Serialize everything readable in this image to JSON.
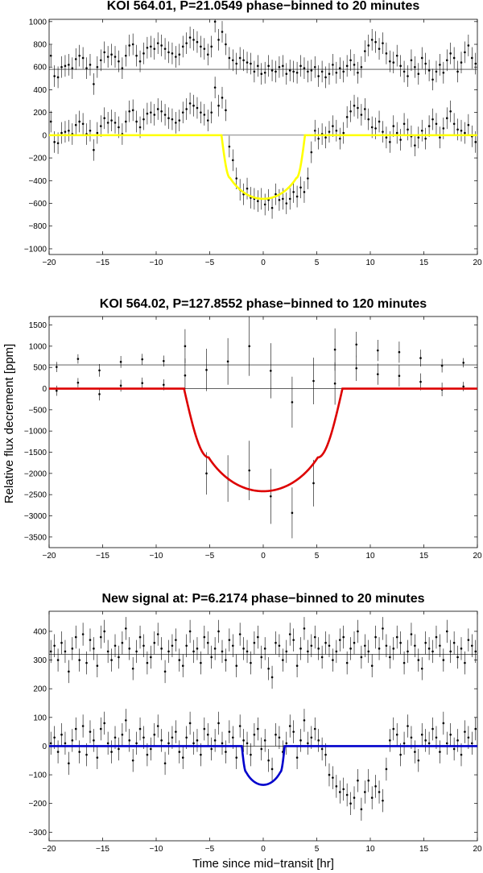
{
  "figure": {
    "ylabel": "Relative flux decrement [ppm]",
    "xlabel": "Time since mid−transit [hr]"
  },
  "colors": {
    "top": "#ffff00",
    "middle": "#dd0000",
    "bottom": "#0000cc",
    "points": "#000000"
  },
  "chart_data": [
    {
      "type": "scatter",
      "title": "KOI 564.01, P=21.0549 phase−binned to 20 minutes",
      "xlabel": "",
      "ylabel": "",
      "xlim": [
        -20,
        20
      ],
      "ylim": [
        -1050,
        1020
      ],
      "xticks": [
        -20,
        -15,
        -10,
        -5,
        0,
        5,
        10,
        15,
        20
      ],
      "yticks": [
        -1000,
        -800,
        -600,
        -400,
        -200,
        0,
        200,
        400,
        600,
        800,
        1000
      ],
      "reference_lines": [
        0,
        580
      ],
      "bin_hours": 0.3333,
      "grid": false,
      "fit_model": {
        "depth": 560,
        "half_duration": 3.9,
        "ingress": 0.8
      },
      "series": [
        {
          "role": "offset",
          "offset": 580,
          "error": 95,
          "values": [
            120,
            -60,
            -70,
            20,
            30,
            40,
            10,
            90,
            120,
            100,
            10,
            40,
            -130,
            20,
            80,
            150,
            110,
            130,
            110,
            70,
            10,
            120,
            210,
            220,
            120,
            70,
            140,
            190,
            200,
            180,
            230,
            210,
            180,
            150,
            140,
            110,
            130,
            200,
            230,
            280,
            260,
            240,
            200,
            180,
            130,
            200,
            420,
            260,
            330,
            220,
            100,
            80,
            50,
            100,
            80,
            60,
            50,
            -20,
            30,
            -40,
            -30,
            30,
            -10,
            -20,
            20,
            30,
            -40,
            -10,
            -20,
            -30,
            30,
            10,
            -20,
            -10,
            20,
            -60,
            -20,
            -70,
            -40,
            40,
            -30,
            10,
            -20,
            30,
            80,
            40,
            -30,
            20,
            160,
            210,
            260,
            240,
            180,
            230,
            140,
            70,
            60,
            120,
            30,
            -20,
            -60,
            80,
            20,
            -40,
            100,
            50,
            -10,
            -90,
            -20,
            40,
            -30,
            80,
            140,
            100,
            -20,
            60,
            150,
            210,
            100,
            50,
            40,
            20,
            90,
            -10,
            -60,
            20,
            40,
            80,
            -10,
            -60,
            20,
            40,
            -30,
            -50,
            -60,
            -10,
            80,
            -60,
            -70,
            80,
            20,
            -30,
            -20,
            40,
            70,
            -60,
            20,
            90,
            -70,
            10,
            30
          ]
        },
        {
          "role": "residual",
          "offset": 0,
          "error": 95,
          "values": [
            120,
            -60,
            -70,
            20,
            30,
            40,
            10,
            90,
            120,
            100,
            10,
            40,
            -130,
            20,
            80,
            150,
            110,
            130,
            110,
            70,
            10,
            120,
            210,
            220,
            120,
            70,
            140,
            190,
            200,
            180,
            230,
            210,
            180,
            150,
            140,
            110,
            130,
            200,
            230,
            280,
            260,
            240,
            200,
            180,
            130,
            200,
            420,
            260,
            330,
            220,
            -100,
            -220,
            -380,
            -480,
            -520,
            -470,
            -550,
            -560,
            -580,
            -560,
            -610,
            -570,
            -640,
            -520,
            -570,
            -560,
            -600,
            -560,
            -500,
            -540,
            -460,
            -500,
            -380,
            -150,
            40,
            -30,
            10,
            -20,
            30,
            80,
            40,
            -30,
            20,
            160,
            210,
            260,
            240,
            180,
            230,
            140,
            70,
            60,
            120,
            30,
            -20,
            -60,
            80,
            20,
            -40,
            100,
            50,
            -10,
            -90,
            -20,
            40,
            -30,
            80,
            140,
            100,
            -20,
            60,
            150,
            210,
            100,
            50,
            40,
            20,
            90,
            -10,
            -60,
            20,
            40,
            80,
            -10,
            -60,
            20,
            40,
            -30,
            -50,
            -60,
            -10,
            80,
            -60,
            -70,
            80,
            20,
            -30,
            -20,
            40,
            70,
            -60,
            20,
            90,
            -70,
            10,
            30
          ]
        }
      ]
    },
    {
      "type": "scatter",
      "title": "KOI 564.02, P=127.8552 phase−binned to 120 minutes",
      "xlabel": "",
      "ylabel": "",
      "xlim": [
        -20,
        20
      ],
      "ylim": [
        -3750,
        1700
      ],
      "xticks": [
        -20,
        -15,
        -10,
        -5,
        0,
        5,
        10,
        15,
        20
      ],
      "yticks": [
        -3500,
        -3000,
        -2500,
        -2000,
        -1500,
        -1000,
        -500,
        0,
        500,
        1000,
        1500
      ],
      "reference_lines": [
        0,
        560
      ],
      "grid": false,
      "fit_model": {
        "depth": 2420,
        "half_duration": 7.4,
        "ingress": 2.3
      },
      "series": [
        {
          "role": "offset",
          "offset": 560,
          "x": [
            -19.3,
            -17.3,
            -15.3,
            -13.3,
            -11.3,
            -9.3,
            -7.3,
            -5.3,
            -3.3,
            -1.3,
            0.7,
            2.7,
            4.7,
            6.7,
            8.7,
            10.7,
            12.7,
            14.7,
            16.7,
            18.7
          ],
          "y": [
            -50,
            140,
            -130,
            70,
            130,
            90,
            -250,
            -120,
            80,
            440,
            -140,
            -880,
            -380,
            360,
            480,
            340,
            300,
            160,
            -20,
            50
          ],
          "err": [
            120,
            110,
            150,
            140,
            130,
            130,
            400,
            500,
            550,
            700,
            650,
            600,
            550,
            500,
            300,
            250,
            250,
            200,
            160,
            110
          ]
        },
        {
          "role": "residual",
          "offset": 0,
          "x": [
            -19.3,
            -17.3,
            -15.3,
            -13.3,
            -11.3,
            -9.3,
            -7.3,
            -5.3,
            -3.3,
            -1.3,
            0.7,
            2.7,
            4.7,
            6.7,
            8.7,
            10.7,
            12.7,
            14.7,
            16.7,
            18.7
          ],
          "y": [
            -50,
            140,
            -130,
            70,
            130,
            90,
            1000,
            -2000,
            -2120,
            -1930,
            -2540,
            -2930,
            -2230,
            120,
            480,
            340,
            300,
            160,
            -20,
            50
          ],
          "err": [
            120,
            110,
            150,
            140,
            130,
            130,
            400,
            500,
            550,
            700,
            650,
            600,
            550,
            500,
            300,
            250,
            250,
            200,
            160,
            110
          ]
        }
      ]
    },
    {
      "type": "scatter",
      "title": "New signal at: P=6.2174 phase−binned to 20 minutes",
      "xlabel": "",
      "ylabel": "",
      "xlim": [
        -20,
        20
      ],
      "ylim": [
        -330,
        470
      ],
      "xticks": [
        -20,
        -15,
        -10,
        -5,
        0,
        5,
        10,
        15,
        20
      ],
      "yticks": [
        -300,
        -200,
        -100,
        0,
        100,
        200,
        300,
        400
      ],
      "reference_lines": [
        0,
        320
      ],
      "bin_hours": 0.3333,
      "grid": false,
      "fit_model": {
        "depth": 135,
        "half_duration": 2.0,
        "ingress": 0.4
      },
      "series": [
        {
          "role": "offset",
          "offset": 320,
          "error": 40,
          "values": [
            10,
            30,
            -20,
            40,
            10,
            -60,
            20,
            60,
            -20,
            70,
            -30,
            50,
            20,
            -40,
            60,
            80,
            10,
            -20,
            30,
            -10,
            40,
            90,
            20,
            -50,
            10,
            60,
            30,
            -30,
            -10,
            40,
            70,
            20,
            -60,
            10,
            30,
            50,
            -20,
            -40,
            30,
            80,
            10,
            20,
            -30,
            60,
            40,
            -10,
            20,
            80,
            10,
            -20,
            50,
            30,
            -40,
            70,
            20,
            10,
            -30,
            40,
            60,
            -10,
            20,
            -50,
            -80,
            40,
            30,
            -20,
            10,
            70,
            50,
            -40,
            20,
            90,
            10,
            30,
            60,
            20,
            -10,
            40,
            30,
            -20,
            10,
            50,
            60,
            -30,
            20,
            40,
            80,
            -10,
            30,
            10,
            -40,
            60,
            20,
            90,
            30,
            -10,
            20,
            60,
            40,
            -30,
            10,
            70,
            30,
            -20,
            -50,
            40,
            20,
            10,
            60,
            30,
            -20,
            80,
            10,
            40,
            -10,
            20,
            -30,
            50,
            30,
            10,
            60,
            -40,
            20,
            30,
            110,
            70,
            -20,
            40,
            10,
            80,
            20,
            -30,
            50,
            10,
            30,
            -10,
            70,
            20,
            40,
            -20,
            10,
            50,
            -40,
            20,
            30,
            -10,
            60,
            10,
            -30,
            40,
            20,
            50,
            -20,
            30,
            10,
            20,
            -40,
            60,
            30,
            -10,
            20,
            40,
            -20,
            30
          ]
        },
        {
          "role": "residual",
          "offset": 0,
          "error": 40,
          "values": [
            10,
            30,
            -20,
            40,
            10,
            -60,
            20,
            60,
            -20,
            70,
            -30,
            50,
            20,
            -40,
            60,
            80,
            10,
            -20,
            30,
            -10,
            40,
            90,
            20,
            -50,
            10,
            60,
            30,
            -30,
            -10,
            40,
            70,
            20,
            -60,
            10,
            30,
            50,
            -20,
            -40,
            30,
            80,
            10,
            20,
            -30,
            60,
            40,
            -10,
            20,
            80,
            10,
            -20,
            50,
            30,
            -40,
            70,
            20,
            10,
            -30,
            40,
            60,
            -10,
            20,
            -50,
            -80,
            40,
            30,
            -20,
            10,
            70,
            50,
            -40,
            20,
            90,
            10,
            30,
            60,
            20,
            -10,
            -30,
            -100,
            -110,
            -140,
            -160,
            -150,
            -170,
            -200,
            -180,
            -120,
            -220,
            -160,
            -120,
            -180,
            -140,
            -160,
            -190,
            -80,
            20,
            60,
            40,
            -30,
            10,
            70,
            30,
            -20,
            -50,
            40,
            20,
            10,
            60,
            30,
            -20,
            80,
            10,
            40,
            -10,
            20,
            -30,
            50,
            30,
            10,
            60,
            -40,
            20,
            30,
            110,
            70,
            -20,
            40,
            10,
            80,
            20,
            -30,
            50,
            10,
            30,
            -10,
            70,
            20,
            40,
            -20,
            10,
            50,
            -40,
            20,
            30,
            -10,
            60,
            10,
            -30,
            40,
            20,
            50,
            -20,
            30,
            10,
            20,
            -40,
            60,
            30,
            -10,
            20,
            40,
            -20,
            30
          ]
        }
      ]
    }
  ]
}
